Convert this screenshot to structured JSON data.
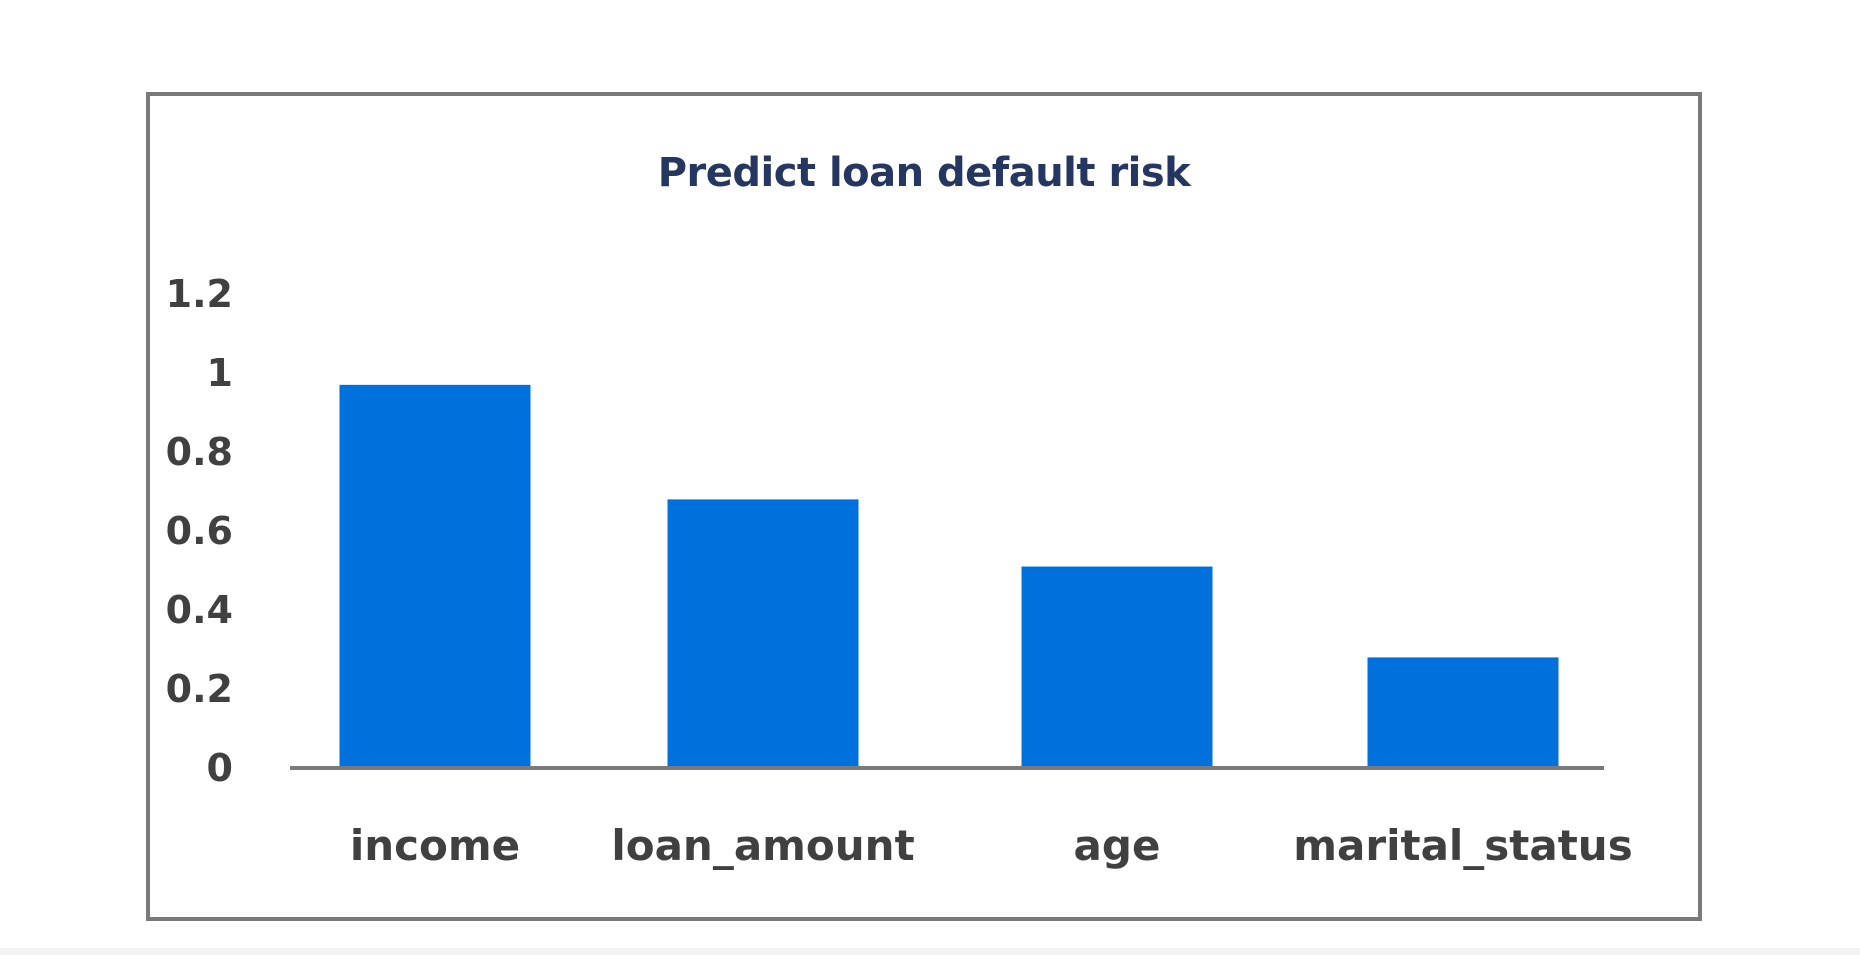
{
  "chart_data": {
    "type": "bar",
    "title": "Predict loan default risk",
    "xlabel": "",
    "ylabel": "",
    "categories": [
      "income",
      "loan_amount",
      "age",
      "marital_status"
    ],
    "values": [
      0.97,
      0.68,
      0.51,
      0.28
    ],
    "y_ticks": [
      "0",
      "0.2",
      "0.4",
      "0.6",
      "0.8",
      "1",
      "1.2"
    ],
    "ylim": [
      0,
      1.2
    ],
    "grid": false,
    "legend": "none",
    "bar_color": "#0071DC",
    "axis_color": "#7A7A7A",
    "title_color": "#253761"
  }
}
